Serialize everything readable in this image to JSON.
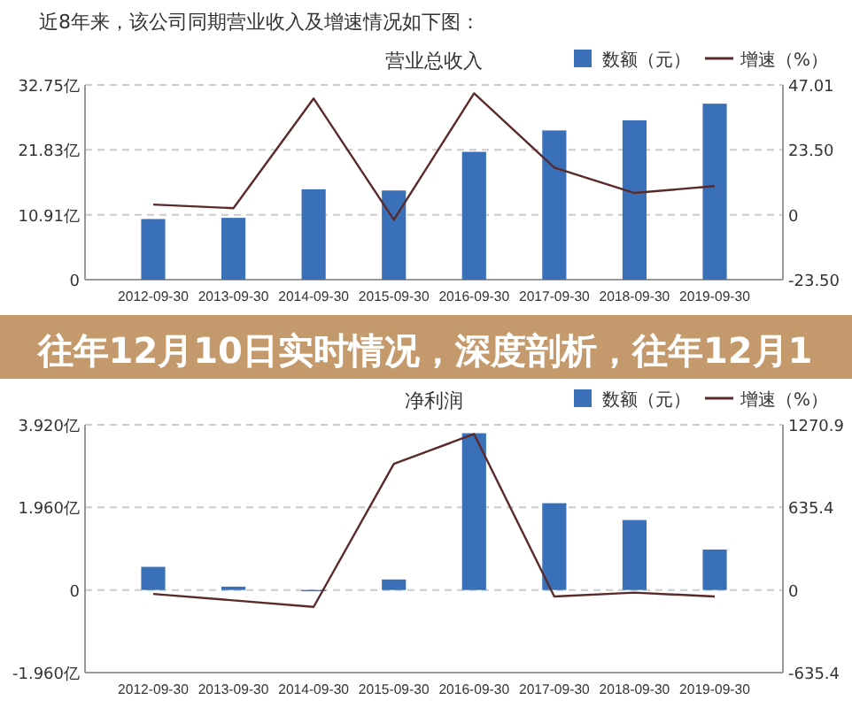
{
  "chart_data": [
    {
      "type": "bar",
      "title": "营业总收入",
      "annotations": [
        "近8年来，该公司同期营业收入及增速情况如下图：",
        "往年12月10日实时情况，深度剖析，往年12月1"
      ],
      "categories": [
        "2012-09-30",
        "2013-09-30",
        "2014-09-30",
        "2015-09-30",
        "2016-09-30",
        "2017-09-30",
        "2018-09-30",
        "2019-09-30"
      ],
      "series": [
        {
          "name": "数额（元）",
          "color": "#3a70b8",
          "values": [
            10.2,
            10.4,
            15.2,
            15.0,
            21.5,
            25.1,
            26.8,
            29.6
          ]
        },
        {
          "name": "增速（%）",
          "type": "line",
          "axis": "y2",
          "color": "#5a2a2a",
          "values": [
            3.7,
            2.4,
            42.1,
            -1.8,
            44.0,
            17.1,
            7.9,
            10.4
          ]
        }
      ],
      "ylim": [
        0,
        32.75
      ],
      "yticks": [
        0,
        {
          "value": 10.91,
          "label": "10.91亿"
        },
        {
          "value": 21.83,
          "label": "21.83亿"
        },
        {
          "value": 32.75,
          "label": "32.75亿"
        }
      ],
      "y2lim": [
        -23.5,
        47.01
      ],
      "y2ticks": [
        {
          "value": -23.5,
          "label": "-23.50"
        },
        0,
        {
          "value": 23.5,
          "label": "23.50"
        },
        47.01
      ],
      "grid": "y",
      "legend": "top right",
      "marker": "none"
    },
    {
      "type": "bar",
      "title": "净利润",
      "categories": [
        "2012-09-30",
        "2013-09-30",
        "2014-09-30",
        "2015-09-30",
        "2016-09-30",
        "2017-09-30",
        "2018-09-30",
        "2019-09-30"
      ],
      "series": [
        {
          "name": "数额（元）",
          "color": "#3a70b8",
          "values": [
            0.55,
            0.08,
            -0.03,
            0.25,
            3.72,
            2.06,
            1.66,
            0.96
          ]
        },
        {
          "name": "增速（%）",
          "type": "line",
          "axis": "y2",
          "color": "#5a2a2a",
          "values": [
            -30,
            -80,
            -130,
            970,
            1200,
            -50,
            -20,
            -50
          ]
        }
      ],
      "ylim": [
        -1.96,
        3.92
      ],
      "yticks": [
        {
          "value": -1.96,
          "label": "-1.960亿"
        },
        0,
        {
          "value": 1.96,
          "label": "1.960亿"
        },
        {
          "value": 3.92,
          "label": "3.920亿"
        }
      ],
      "y2lim": [
        -635.4,
        1270.9
      ],
      "y2ticks": [
        -635.4,
        0,
        635.4,
        1270.9
      ],
      "grid": "y",
      "legend": "top right",
      "marker": "none"
    }
  ]
}
